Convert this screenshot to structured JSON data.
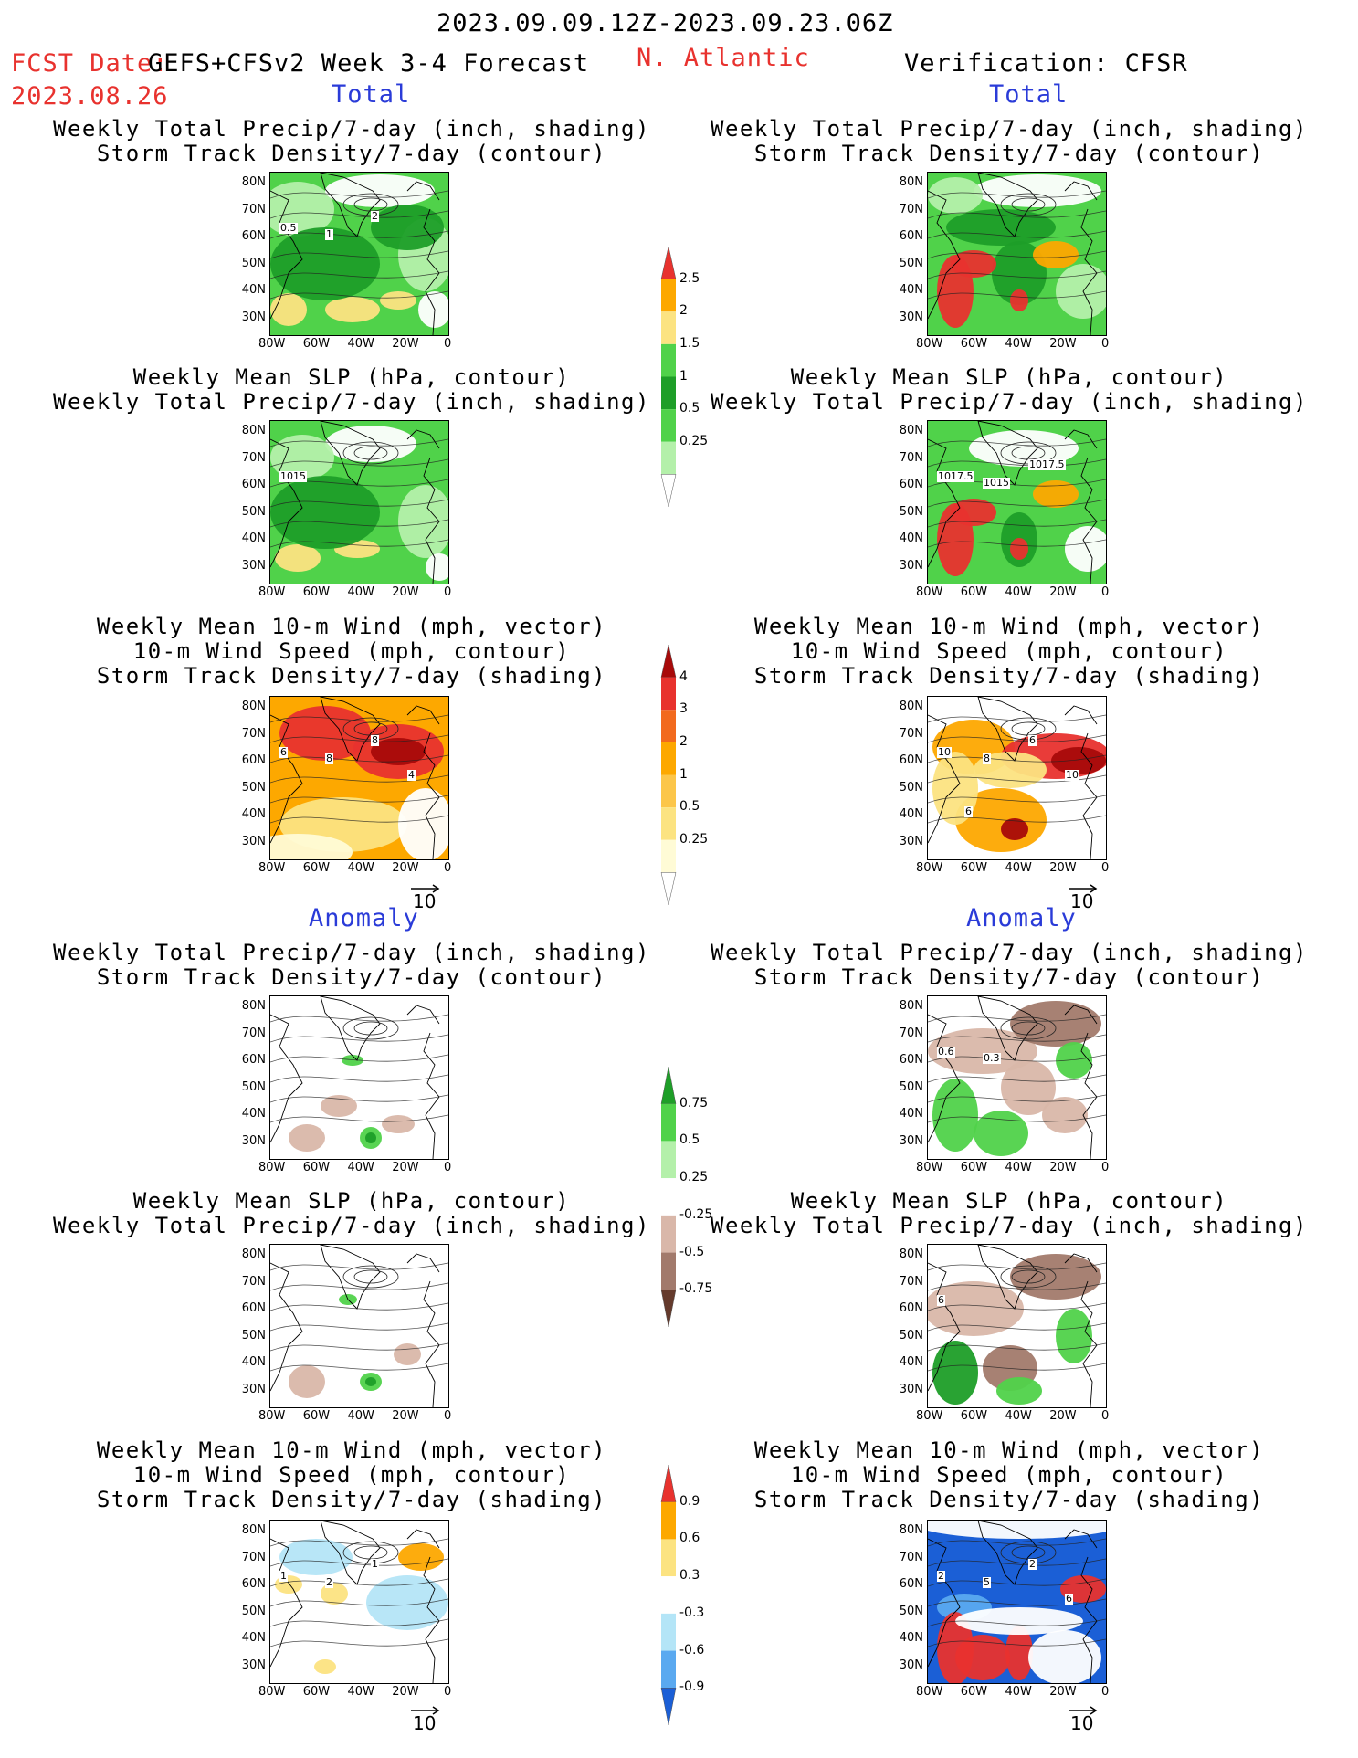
{
  "header": {
    "date_range": "2023.09.09.12Z-2023.09.23.06Z",
    "fcst_label": "FCST Date:",
    "model": "GEFS+CFSv2 Week 3-4 Forecast",
    "fcst_date": "2023.08.26",
    "region": "N. Atlantic",
    "verification": "Verification: CFSR"
  },
  "sections": {
    "total": "Total",
    "anomaly": "Anomaly"
  },
  "panel_titles": {
    "p1_l1": "Weekly Total Precip/7-day (inch, shading)",
    "p1_l2": "Storm Track Density/7-day (contour)",
    "p2_l1": "Weekly Mean SLP (hPa, contour)",
    "p2_l2": "Weekly Total Precip/7-day (inch, shading)",
    "p3_l1": "Weekly Mean 10-m Wind (mph, vector)",
    "p3_l2": "10-m Wind Speed (mph, contour)",
    "p3_l3": "Storm Track Density/7-day (shading)"
  },
  "axes": {
    "lat": [
      "80N",
      "70N",
      "60N",
      "50N",
      "40N",
      "30N"
    ],
    "lon": [
      "80W",
      "60W",
      "40W",
      "20W",
      "0"
    ]
  },
  "vector_ref": "10",
  "colorbars": {
    "precip_total": [
      "2.5",
      "2",
      "1.5",
      "1",
      "0.5",
      "0.25"
    ],
    "storm_total": [
      "4",
      "3",
      "2",
      "1",
      "0.5",
      "0.25"
    ],
    "precip_anom": [
      "0.75",
      "0.5",
      "0.25",
      "-0.25",
      "-0.5",
      "-0.75"
    ],
    "storm_anom": [
      "0.9",
      "0.6",
      "0.3",
      "-0.3",
      "-0.6",
      "-0.9"
    ]
  },
  "contour_labels": {
    "fc_track": [
      "0.5",
      "1",
      "2"
    ],
    "fc_slp": [
      "1015"
    ],
    "fc_wind": [
      "6",
      "8",
      "8",
      "4"
    ],
    "ob_slp": [
      "1017.5",
      "1015",
      "1017.5"
    ],
    "ob_wind": [
      "10",
      "8",
      "6",
      "10",
      "6"
    ],
    "ob_track_anom": [
      "0.6",
      "0.3"
    ],
    "ob_slp_anom": [
      "6"
    ],
    "fc_wind_anom": [
      "1",
      "2",
      "1"
    ],
    "ob_wind_anom": [
      "2",
      "5",
      "2",
      "6"
    ]
  },
  "colors": {
    "title_red": "#e8322e",
    "section_blue": "#2a3bd8",
    "green_light": "#b4f0aa",
    "green_mid": "#50d24a",
    "green_dark": "#1e9e28",
    "yellow": "#fce381",
    "orange": "#fda800",
    "red": "#e8322e",
    "darkred": "#a80a0a",
    "brown_light": "#d9b7a9",
    "brown_mid": "#a27a6c",
    "brown_dark": "#6e4436",
    "blue_light": "#b4e5f7",
    "blue_mid": "#5aa9f0",
    "blue_dark": "#1b5fd6"
  }
}
